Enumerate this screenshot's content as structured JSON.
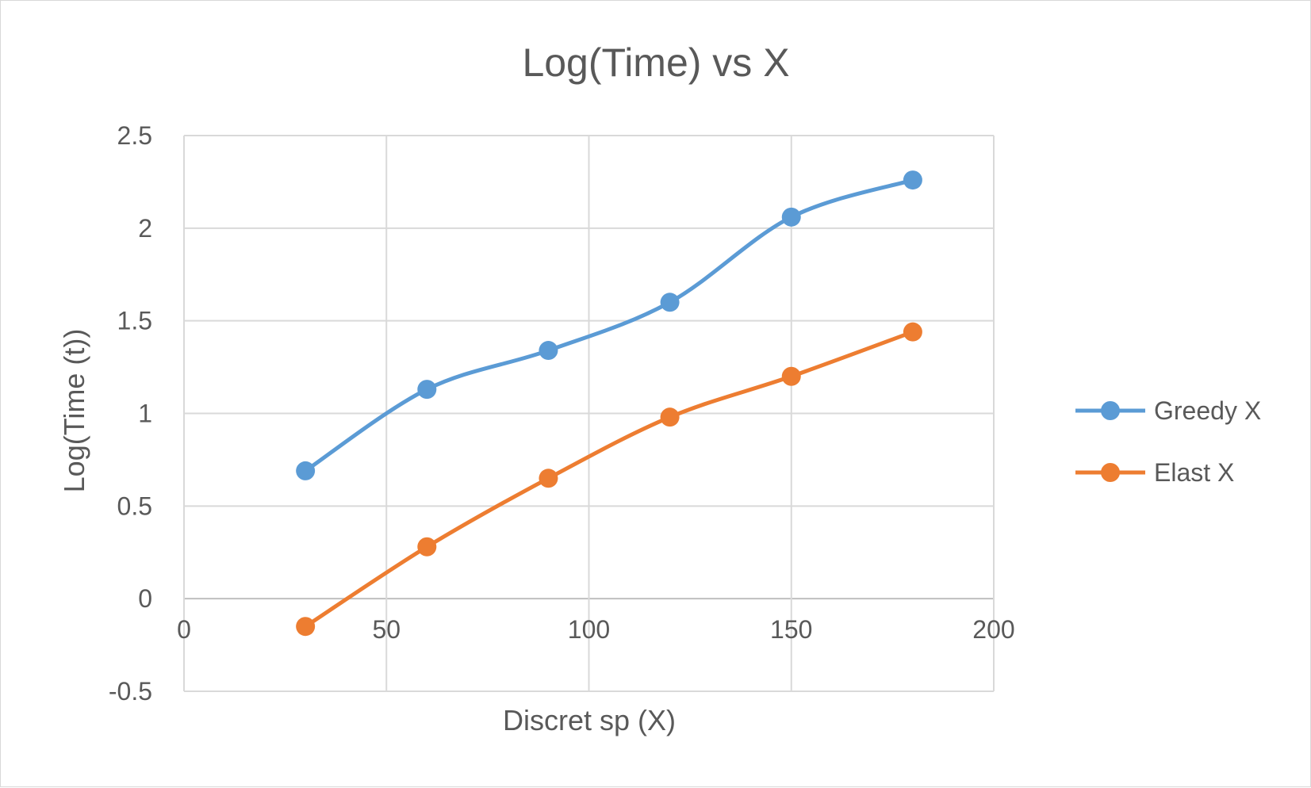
{
  "chart_data": {
    "type": "line",
    "title": "Log(Time) vs X",
    "xlabel": "Discret sp (X)",
    "ylabel": "Log(Time (t))",
    "xlim": [
      0,
      200
    ],
    "ylim": [
      -0.5,
      2.5
    ],
    "x_ticks": [
      "0",
      "50",
      "100",
      "150",
      "200"
    ],
    "y_ticks": [
      "-0.5",
      "0",
      "0.5",
      "1",
      "1.5",
      "2",
      "2.5"
    ],
    "x_tick_values": [
      0,
      50,
      100,
      150,
      200
    ],
    "y_tick_values": [
      -0.5,
      0,
      0.5,
      1,
      1.5,
      2,
      2.5
    ],
    "grid": true,
    "smoothed": true,
    "legend_position": "right",
    "x": [
      30,
      60,
      90,
      120,
      150,
      180
    ],
    "series": [
      {
        "name": "Greedy X",
        "color": "#5b9bd5",
        "values": [
          0.69,
          1.13,
          1.34,
          1.6,
          2.06,
          2.26
        ]
      },
      {
        "name": "Elast X",
        "color": "#ed7d31",
        "values": [
          -0.15,
          0.28,
          0.65,
          0.98,
          1.2,
          1.44
        ]
      }
    ]
  }
}
